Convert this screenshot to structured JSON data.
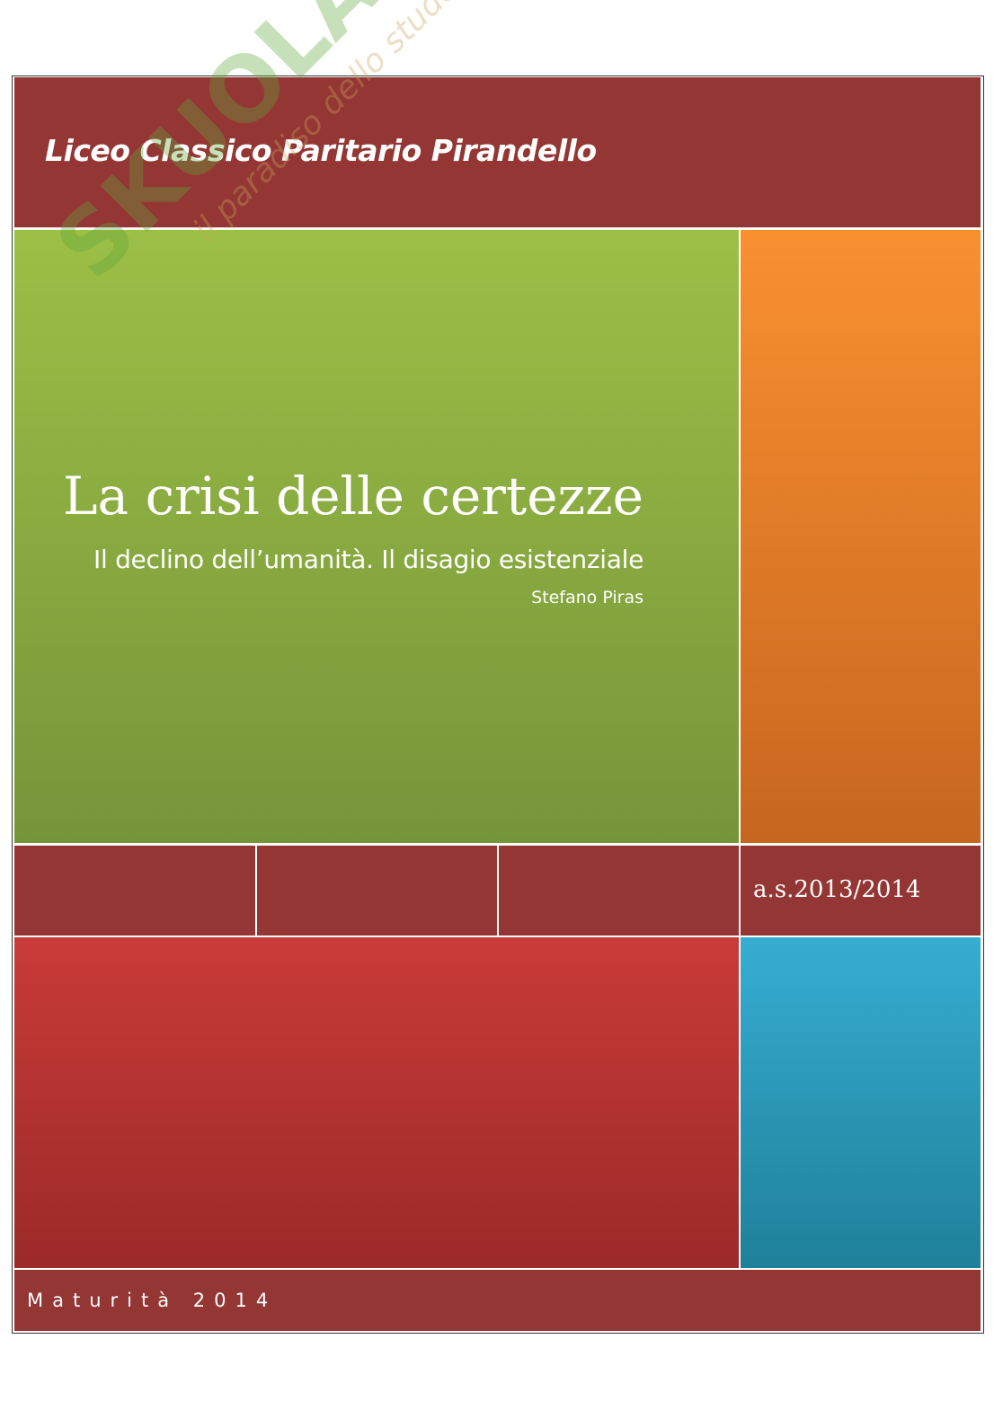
{
  "header": {
    "school": "Liceo Classico Paritario Pirandello"
  },
  "main": {
    "title": "La crisi delle certezze",
    "subtitle": "Il declino dell’umanità. Il disagio esistenziale",
    "author": "Stefano Piras"
  },
  "info": {
    "school_year": "a.s.2013/2014"
  },
  "footer": {
    "label": "Maturità 2014"
  },
  "watermark": {
    "logo": "SKUOLA.net",
    "tagline": "il paradiso dello studente"
  },
  "colors": {
    "header": "#943634",
    "green": "#9cbf46",
    "orange": "#f99030",
    "red": "#c93b38",
    "blue": "#36aed2"
  }
}
